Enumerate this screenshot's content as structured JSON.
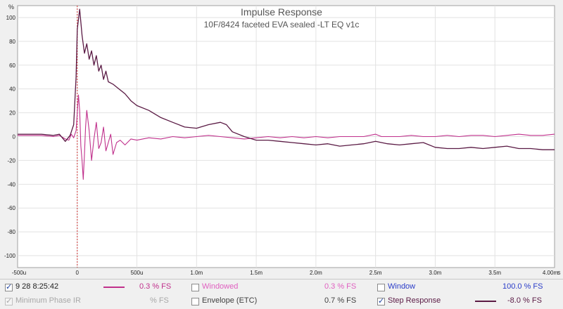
{
  "chart_data": {
    "type": "line",
    "title": "Impulse Response",
    "subtitle": "10F/8424 faceted EVA sealed -LT EQ v1c",
    "y_unit": "%",
    "x_unit_suffix": "s",
    "xlim": [
      -0.0005,
      0.004
    ],
    "ylim": [
      -110,
      110
    ],
    "x_ticks": [
      {
        "value": -0.0005,
        "label": "-500u"
      },
      {
        "value": 0,
        "label": "0"
      },
      {
        "value": 0.0005,
        "label": "500u"
      },
      {
        "value": 0.001,
        "label": "1.0m"
      },
      {
        "value": 0.0015,
        "label": "1.5m"
      },
      {
        "value": 0.002,
        "label": "2.0m"
      },
      {
        "value": 0.0025,
        "label": "2.5m"
      },
      {
        "value": 0.003,
        "label": "3.0m"
      },
      {
        "value": 0.0035,
        "label": "3.5m"
      },
      {
        "value": 0.004,
        "label": "4.00m"
      }
    ],
    "y_ticks": [
      {
        "value": 100,
        "label": "100"
      },
      {
        "value": 80,
        "label": "80"
      },
      {
        "value": 60,
        "label": "60"
      },
      {
        "value": 40,
        "label": "40"
      },
      {
        "value": 20,
        "label": "20"
      },
      {
        "value": 0,
        "label": "0"
      },
      {
        "value": -20,
        "label": "-20"
      },
      {
        "value": -40,
        "label": "-40"
      },
      {
        "value": -60,
        "label": "-60"
      },
      {
        "value": -80,
        "label": "-80"
      },
      {
        "value": -100,
        "label": "-100"
      }
    ],
    "grid": true,
    "marker_x": 0,
    "series": [
      {
        "color": "#c0308c",
        "x": [
          -0.0005,
          -0.0004,
          -0.0003,
          -0.0002,
          -0.00015,
          -0.0001,
          -7e-05,
          -5e-05,
          -3e-05,
          -1e-05,
          0,
          1e-05,
          2e-05,
          3e-05,
          4e-05,
          5e-05,
          6e-05,
          7e-05,
          8e-05,
          0.0001,
          0.00012,
          0.00014,
          0.00016,
          0.00018,
          0.0002,
          0.00022,
          0.00024,
          0.00026,
          0.00028,
          0.0003,
          0.00033,
          0.00036,
          0.0004,
          0.00045,
          0.0005,
          0.0006,
          0.0007,
          0.0008,
          0.0009,
          0.001,
          0.0011,
          0.0012,
          0.0013,
          0.0014,
          0.0015,
          0.0016,
          0.0017,
          0.0018,
          0.0019,
          0.002,
          0.0021,
          0.0022,
          0.0023,
          0.0024,
          0.0025,
          0.00255,
          0.0026,
          0.0027,
          0.0028,
          0.0029,
          0.003,
          0.0031,
          0.0032,
          0.0033,
          0.0034,
          0.0035,
          0.0036,
          0.0037,
          0.0038,
          0.0039,
          0.004
        ],
        "y": [
          1,
          1,
          1,
          0,
          1,
          -2,
          -3,
          2,
          -1,
          5,
          20,
          35,
          22,
          -8,
          -20,
          -36,
          -15,
          8,
          22,
          5,
          -20,
          -2,
          12,
          -10,
          -5,
          8,
          -12,
          -5,
          2,
          -15,
          -5,
          -3,
          -7,
          -2,
          -3,
          -1,
          -2,
          0,
          -1,
          0,
          1,
          0,
          -1,
          -2,
          -1,
          0,
          -1,
          0,
          -1,
          0,
          -1,
          0,
          0,
          0,
          2,
          0,
          0,
          0,
          1,
          0,
          0,
          1,
          0,
          1,
          1,
          0,
          1,
          2,
          1,
          1,
          2
        ]
      },
      {
        "color": "#5a1a44",
        "x": [
          -0.0005,
          -0.0004,
          -0.0003,
          -0.0002,
          -0.00015,
          -0.0001,
          -6e-05,
          -3e-05,
          -1e-05,
          0,
          2e-05,
          4e-05,
          6e-05,
          8e-05,
          0.0001,
          0.00012,
          0.00014,
          0.00016,
          0.00018,
          0.0002,
          0.00022,
          0.00024,
          0.00026,
          0.00028,
          0.0003,
          0.00035,
          0.0004,
          0.00045,
          0.0005,
          0.0006,
          0.0007,
          0.0008,
          0.0009,
          0.001,
          0.0011,
          0.0012,
          0.00125,
          0.0013,
          0.0014,
          0.0015,
          0.0016,
          0.0017,
          0.0018,
          0.0019,
          0.002,
          0.0021,
          0.0022,
          0.0023,
          0.0024,
          0.0025,
          0.00255,
          0.0026,
          0.0027,
          0.0028,
          0.0029,
          0.003,
          0.0031,
          0.0032,
          0.0033,
          0.0034,
          0.0035,
          0.0036,
          0.0037,
          0.0038,
          0.0039,
          0.004
        ],
        "y": [
          2,
          2,
          2,
          1,
          2,
          -4,
          1,
          10,
          50,
          90,
          107,
          85,
          70,
          78,
          65,
          72,
          60,
          68,
          55,
          60,
          48,
          55,
          46,
          45,
          44,
          40,
          36,
          30,
          26,
          22,
          16,
          12,
          8,
          7,
          10,
          12,
          10,
          4,
          0,
          -3,
          -3,
          -4,
          -5,
          -6,
          -7,
          -6,
          -8,
          -7,
          -6,
          -4,
          -5,
          -6,
          -7,
          -6,
          -5,
          -9,
          -10,
          -10,
          -9,
          -10,
          -9,
          -8,
          -10,
          -10,
          -11,
          -11
        ]
      }
    ]
  },
  "legend": {
    "row1": {
      "item1_label": "9 28 8:25:42",
      "item1_value": "0.3 % FS",
      "item2_label": "Windowed",
      "item2_value": "0.3 % FS",
      "item3_label": "Window",
      "item3_value": "100.0 % FS"
    },
    "row2": {
      "item1_label": "Minimum Phase IR",
      "item1_value": "% FS",
      "item2_label": "Envelope (ETC)",
      "item2_value": "0.7 % FS",
      "item3_label": "Step Response",
      "item3_value": "-8.0 % FS"
    },
    "colors": {
      "ir": "#c0308c",
      "windowed": "#e060c0",
      "window": "#2a3cc8",
      "disabled": "#a8a8a8",
      "envelope": "#404040",
      "step": "#5a1a44"
    }
  }
}
